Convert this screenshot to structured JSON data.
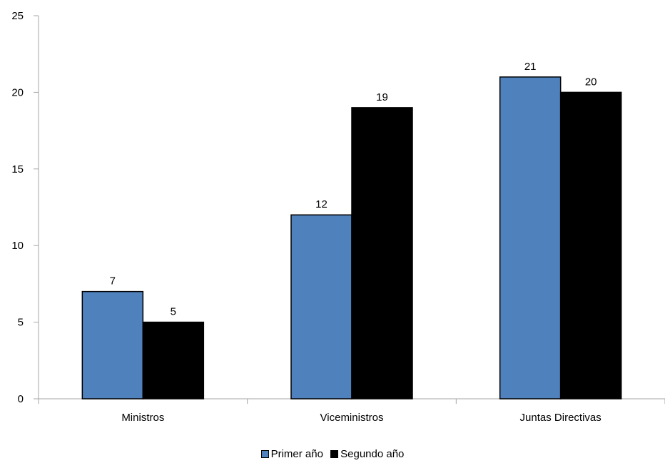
{
  "chart_data": {
    "type": "bar",
    "title": "",
    "xlabel": "",
    "ylabel": "",
    "categories": [
      "Ministros",
      "Viceministros",
      "Juntas Directivas"
    ],
    "series": [
      {
        "name": "Primer año",
        "values": [
          7,
          12,
          21
        ],
        "color": "#4f81bd"
      },
      {
        "name": "Segundo año",
        "values": [
          5,
          19,
          20
        ],
        "color": "#000000"
      }
    ],
    "ylim": [
      0,
      25
    ],
    "yticks": [
      0,
      5,
      10,
      15,
      20,
      25
    ],
    "grid": false,
    "legend_position": "bottom",
    "data_labels": true
  }
}
